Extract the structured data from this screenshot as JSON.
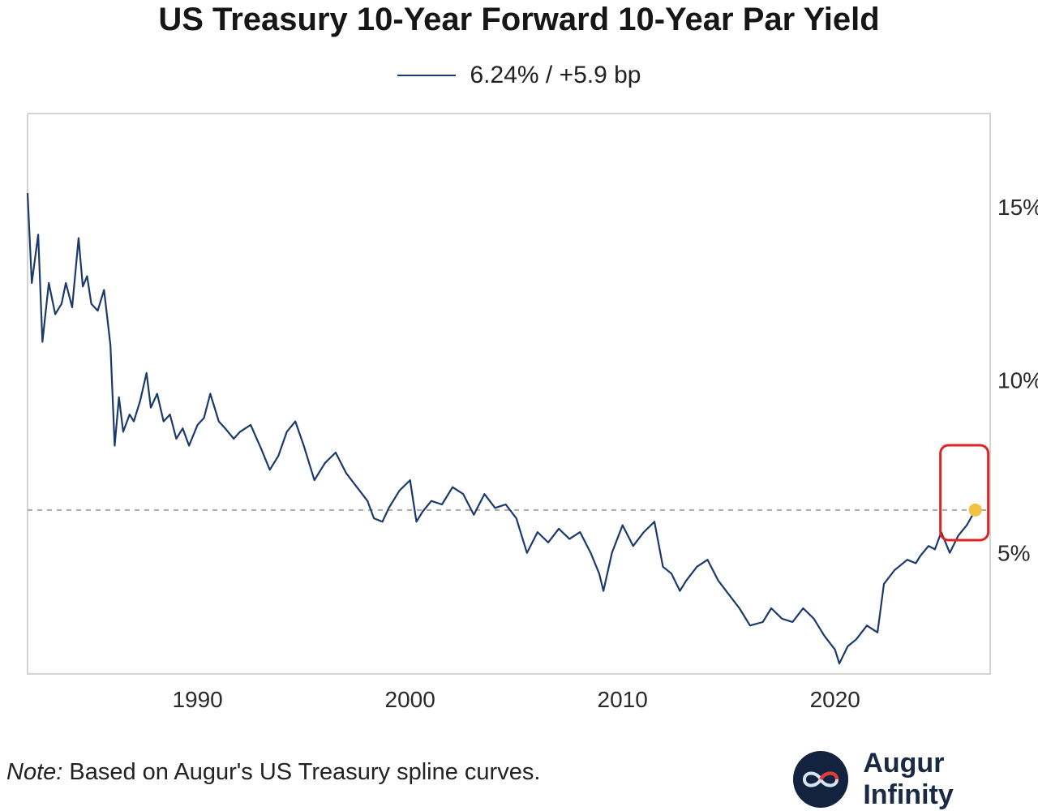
{
  "title": "US Treasury 10-Year Forward 10-Year Par Yield",
  "legend": {
    "label": "6.24% / +5.9 bp"
  },
  "note": {
    "prefix": "Note:",
    "text": " Based on Augur's US Treasury spline curves."
  },
  "brand": {
    "name": "Augur Infinity",
    "logo_icon": "infinity-icon"
  },
  "colors": {
    "line": "#1b3a6b",
    "reference": "#aaaaaa",
    "marker": "#f2c240",
    "highlight": "#e02424",
    "frame": "#d4d4d4"
  },
  "chart_data": {
    "type": "line",
    "title": "US Treasury 10-Year Forward 10-Year Par Yield",
    "xlabel": "",
    "ylabel": "",
    "xlim": [
      1982,
      2027.3
    ],
    "ylim": [
      1.5,
      17.7
    ],
    "x_ticks": [
      1990,
      2000,
      2010,
      2020
    ],
    "x_tick_labels": [
      "1990",
      "2000",
      "2010",
      "2020"
    ],
    "y_ticks": [
      5,
      10,
      15
    ],
    "y_tick_labels": [
      "5%",
      "10%",
      "15%"
    ],
    "grid": false,
    "legend_position": "top-center",
    "reference_line": {
      "y": 6.24,
      "style": "dashed"
    },
    "last_point": {
      "x": 2026.6,
      "y": 6.24
    },
    "series": [
      {
        "name": "6.24% / +5.9 bp",
        "x": [
          1982.0,
          1982.2,
          1982.5,
          1982.7,
          1983.0,
          1983.3,
          1983.6,
          1983.8,
          1984.1,
          1984.4,
          1984.6,
          1984.8,
          1985.0,
          1985.3,
          1985.6,
          1985.9,
          1986.1,
          1986.3,
          1986.5,
          1986.8,
          1987.0,
          1987.3,
          1987.6,
          1987.8,
          1988.1,
          1988.4,
          1988.7,
          1989.0,
          1989.3,
          1989.6,
          1990.0,
          1990.3,
          1990.6,
          1991.0,
          1991.3,
          1991.7,
          1992.0,
          1992.5,
          1993.0,
          1993.4,
          1993.8,
          1994.2,
          1994.6,
          1995.0,
          1995.5,
          1996.0,
          1996.5,
          1997.0,
          1997.5,
          1998.0,
          1998.3,
          1998.7,
          1999.0,
          1999.5,
          2000.0,
          2000.3,
          2000.6,
          2001.0,
          2001.5,
          2002.0,
          2002.5,
          2003.0,
          2003.5,
          2004.0,
          2004.5,
          2005.0,
          2005.5,
          2006.0,
          2006.5,
          2007.0,
          2007.5,
          2008.0,
          2008.5,
          2008.9,
          2009.1,
          2009.5,
          2010.0,
          2010.5,
          2011.0,
          2011.5,
          2011.9,
          2012.3,
          2012.7,
          2013.0,
          2013.5,
          2014.0,
          2014.5,
          2015.0,
          2015.5,
          2016.0,
          2016.6,
          2017.0,
          2017.5,
          2018.0,
          2018.5,
          2019.0,
          2019.5,
          2020.0,
          2020.2,
          2020.6,
          2021.0,
          2021.5,
          2022.0,
          2022.3,
          2022.8,
          2023.0,
          2023.4,
          2023.8,
          2024.0,
          2024.4,
          2024.7,
          2025.0,
          2025.4,
          2025.8,
          2026.2,
          2026.6
        ],
        "values": [
          15.4,
          12.8,
          14.2,
          11.1,
          12.8,
          11.9,
          12.2,
          12.8,
          12.1,
          14.1,
          12.7,
          13.0,
          12.2,
          12.0,
          12.6,
          11.0,
          8.1,
          9.5,
          8.5,
          9.0,
          8.8,
          9.4,
          10.2,
          9.2,
          9.6,
          8.8,
          9.0,
          8.3,
          8.6,
          8.1,
          8.7,
          8.9,
          9.6,
          8.8,
          8.6,
          8.3,
          8.5,
          8.7,
          8.0,
          7.4,
          7.8,
          8.5,
          8.8,
          8.1,
          7.1,
          7.6,
          7.9,
          7.3,
          6.9,
          6.5,
          6.0,
          5.9,
          6.3,
          6.8,
          7.1,
          5.9,
          6.2,
          6.5,
          6.4,
          6.9,
          6.7,
          6.1,
          6.7,
          6.3,
          6.4,
          6.0,
          5.0,
          5.6,
          5.3,
          5.7,
          5.4,
          5.6,
          5.0,
          4.4,
          3.9,
          5.0,
          5.8,
          5.2,
          5.6,
          5.9,
          4.6,
          4.4,
          3.9,
          4.2,
          4.6,
          4.8,
          4.2,
          3.8,
          3.4,
          2.9,
          3.0,
          3.4,
          3.1,
          3.0,
          3.4,
          3.1,
          2.6,
          2.2,
          1.8,
          2.3,
          2.5,
          2.9,
          2.7,
          4.1,
          4.5,
          4.6,
          4.8,
          4.7,
          4.9,
          5.2,
          5.1,
          5.6,
          5.0,
          5.5,
          5.8,
          6.24
        ]
      }
    ]
  }
}
